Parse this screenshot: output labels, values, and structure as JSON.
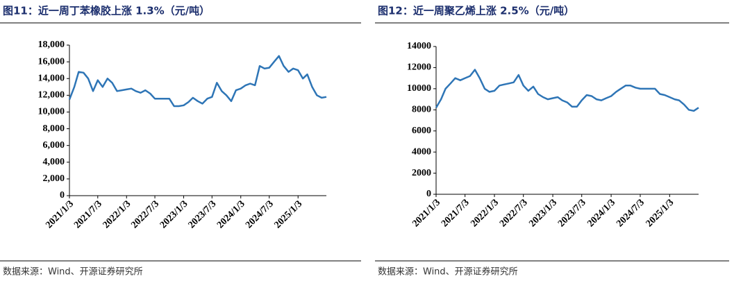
{
  "chart_data": [
    {
      "type": "line",
      "title": "图11：近一周丁苯橡胶上涨 1.3%（元/吨）",
      "source": "数据来源：Wind、开源证券研究所",
      "color": "#2e75b6",
      "x": [
        "2021/1/3",
        "2021/2/3",
        "2021/3/3",
        "2021/4/3",
        "2021/5/3",
        "2021/6/3",
        "2021/7/3",
        "2021/8/3",
        "2021/9/3",
        "2021/10/3",
        "2021/11/3",
        "2021/12/3",
        "2022/1/3",
        "2022/2/3",
        "2022/3/3",
        "2022/4/3",
        "2022/5/3",
        "2022/6/3",
        "2022/7/3",
        "2022/8/3",
        "2022/9/3",
        "2022/10/3",
        "2022/11/3",
        "2022/12/3",
        "2023/1/3",
        "2023/2/3",
        "2023/3/3",
        "2023/4/3",
        "2023/5/3",
        "2023/6/3",
        "2023/7/3",
        "2023/8/3",
        "2023/9/3",
        "2023/10/3",
        "2023/11/3",
        "2023/12/3",
        "2024/1/3",
        "2024/2/3",
        "2024/3/3",
        "2024/4/3",
        "2024/5/3",
        "2024/6/3",
        "2024/7/3",
        "2024/8/3",
        "2024/9/3",
        "2024/10/3",
        "2024/11/3",
        "2024/12/3",
        "2025/1/3",
        "2025/2/3",
        "2025/3/3",
        "2025/4/3",
        "2025/5/3",
        "2025/6/3",
        "2025/7/3"
      ],
      "values": [
        11500,
        13000,
        14800,
        14700,
        14000,
        12500,
        13800,
        13000,
        14000,
        13500,
        12500,
        12600,
        12700,
        12800,
        12500,
        12300,
        12600,
        12200,
        11600,
        11600,
        11600,
        11600,
        10700,
        10700,
        10800,
        11200,
        11700,
        11300,
        11000,
        11600,
        11800,
        13500,
        12500,
        12000,
        11300,
        12600,
        12800,
        13200,
        13400,
        13200,
        15500,
        15200,
        15300,
        16000,
        16700,
        15500,
        14800,
        15200,
        15000,
        14000,
        14500,
        13000,
        12000,
        11700,
        11800
      ],
      "xlim": [
        "2021/1/3",
        "2025/7/3"
      ],
      "xticks": [
        "2021/1/3",
        "2021/7/3",
        "2022/1/3",
        "2022/7/3",
        "2023/1/3",
        "2023/7/3",
        "2024/1/3",
        "2024/7/3",
        "2025/1/3"
      ],
      "ylim": [
        0,
        18000
      ],
      "yticks": [
        0,
        {
          "value": 2000,
          "label": "2,000"
        },
        {
          "value": 4000,
          "label": "4,000"
        },
        {
          "value": 6000,
          "label": "6,000"
        },
        {
          "value": 8000,
          "label": "8,000"
        },
        {
          "value": 10000,
          "label": "10,000"
        },
        {
          "value": 12000,
          "label": "12,000"
        },
        {
          "value": 14000,
          "label": "14,000"
        },
        {
          "value": 16000,
          "label": "16,000"
        },
        {
          "value": 18000,
          "label": "18,000"
        }
      ]
    },
    {
      "type": "line",
      "title": "图12：近一周聚乙烯上涨 2.5%（元/吨）",
      "source": "数据来源：Wind、开源证券研究所",
      "color": "#2e75b6",
      "x": [
        "2021/1/3",
        "2021/2/3",
        "2021/3/3",
        "2021/4/3",
        "2021/5/3",
        "2021/6/3",
        "2021/7/3",
        "2021/8/3",
        "2021/9/3",
        "2021/10/3",
        "2021/11/3",
        "2021/12/3",
        "2022/1/3",
        "2022/2/3",
        "2022/3/3",
        "2022/4/3",
        "2022/5/3",
        "2022/6/3",
        "2022/7/3",
        "2022/8/3",
        "2022/9/3",
        "2022/10/3",
        "2022/11/3",
        "2022/12/3",
        "2023/1/3",
        "2023/2/3",
        "2023/3/3",
        "2023/4/3",
        "2023/5/3",
        "2023/6/3",
        "2023/7/3",
        "2023/8/3",
        "2023/9/3",
        "2023/10/3",
        "2023/11/3",
        "2023/12/3",
        "2024/1/3",
        "2024/2/3",
        "2024/3/3",
        "2024/4/3",
        "2024/5/3",
        "2024/6/3",
        "2024/7/3",
        "2024/8/3",
        "2024/9/3",
        "2024/10/3",
        "2024/11/3",
        "2024/12/3",
        "2025/1/3",
        "2025/2/3",
        "2025/3/3",
        "2025/4/3",
        "2025/5/3",
        "2025/6/3",
        "2025/7/3"
      ],
      "values": [
        8200,
        9000,
        10000,
        10500,
        11000,
        10800,
        11000,
        11200,
        11800,
        11000,
        10000,
        9700,
        9800,
        10300,
        10400,
        10500,
        10600,
        11300,
        10300,
        9800,
        10200,
        9500,
        9200,
        9000,
        9100,
        9200,
        8900,
        8700,
        8300,
        8300,
        8900,
        9400,
        9300,
        9000,
        8900,
        9100,
        9300,
        9700,
        10000,
        10300,
        10300,
        10100,
        10000,
        10000,
        10000,
        10000,
        9500,
        9400,
        9200,
        9000,
        8900,
        8500,
        8000,
        7900,
        8200
      ],
      "xlim": [
        "2021/1/3",
        "2025/7/3"
      ],
      "xticks": [
        "2021/1/3",
        "2021/7/3",
        "2022/1/3",
        "2022/7/3",
        "2023/1/3",
        "2023/7/3",
        "2024/1/3",
        "2024/7/3",
        "2025/1/3"
      ],
      "ylim": [
        0,
        14000
      ],
      "yticks": [
        0,
        2000,
        4000,
        6000,
        8000,
        10000,
        12000,
        14000
      ]
    }
  ]
}
